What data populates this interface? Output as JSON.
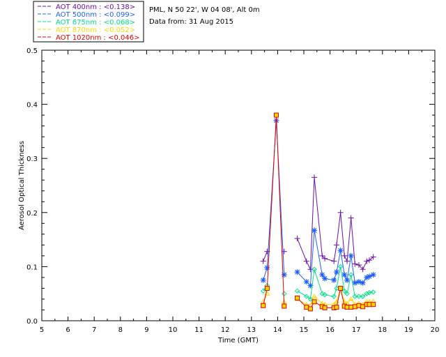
{
  "header": {
    "station": "PML, N 50 22', W 04 08', Alt 0m",
    "date": "Data from: 31 Aug 2015"
  },
  "chart_data": {
    "type": "line",
    "xlabel": "Time (GMT)",
    "ylabel": "Aerosol Optical Thickness",
    "xlim": [
      5,
      20
    ],
    "ylim": [
      0,
      0.5
    ],
    "xticks": [
      "5",
      "6",
      "7",
      "8",
      "9",
      "10",
      "11",
      "12",
      "13",
      "14",
      "15",
      "16",
      "17",
      "18",
      "19",
      "20"
    ],
    "yticks": [
      "0.0",
      "0.1",
      "0.2",
      "0.3",
      "0.4",
      "0.5"
    ],
    "legend_position": "top-left",
    "series": [
      {
        "name": "AOT  400nm : <0.138>",
        "color": "#6a0dad",
        "marker": "plus",
        "points": [
          [
            13.45,
            0.11
          ],
          [
            13.6,
            0.128
          ],
          [
            14.25,
            0.128
          ],
          [
            14.75,
            0.152
          ],
          [
            15.1,
            0.11
          ],
          [
            15.25,
            0.095
          ],
          [
            15.4,
            0.265
          ],
          [
            15.7,
            0.12
          ],
          [
            15.8,
            0.115
          ],
          [
            16.15,
            0.11
          ],
          [
            16.25,
            0.14
          ],
          [
            16.4,
            0.2
          ],
          [
            16.55,
            0.12
          ],
          [
            16.65,
            0.11
          ],
          [
            16.8,
            0.19
          ],
          [
            16.95,
            0.105
          ],
          [
            17.1,
            0.103
          ],
          [
            17.25,
            0.095
          ],
          [
            17.4,
            0.11
          ],
          [
            17.5,
            0.112
          ],
          [
            17.65,
            0.118
          ]
        ]
      },
      {
        "name": "AOT  500nm : <0.099>",
        "color": "#1f5fff",
        "marker": "asterisk",
        "points": [
          [
            13.45,
            0.075
          ],
          [
            13.6,
            0.098
          ],
          [
            13.95,
            0.37
          ],
          [
            14.25,
            0.085
          ],
          [
            14.75,
            0.09
          ],
          [
            15.1,
            0.072
          ],
          [
            15.25,
            0.065
          ],
          [
            15.4,
            0.167
          ],
          [
            15.7,
            0.085
          ],
          [
            15.8,
            0.078
          ],
          [
            16.15,
            0.075
          ],
          [
            16.25,
            0.09
          ],
          [
            16.4,
            0.13
          ],
          [
            16.55,
            0.085
          ],
          [
            16.65,
            0.075
          ],
          [
            16.8,
            0.12
          ],
          [
            16.95,
            0.07
          ],
          [
            17.1,
            0.072
          ],
          [
            17.25,
            0.07
          ],
          [
            17.4,
            0.08
          ],
          [
            17.5,
            0.082
          ],
          [
            17.65,
            0.085
          ]
        ]
      },
      {
        "name": "AOT  675nm : <0.068>",
        "color": "#00e08a",
        "marker": "diamond",
        "points": [
          [
            13.45,
            0.055
          ],
          [
            13.6,
            0.065
          ],
          [
            14.25,
            0.05
          ],
          [
            14.75,
            0.055
          ],
          [
            15.1,
            0.045
          ],
          [
            15.25,
            0.04
          ],
          [
            15.4,
            0.095
          ],
          [
            15.7,
            0.05
          ],
          [
            15.8,
            0.048
          ],
          [
            16.15,
            0.045
          ],
          [
            16.25,
            0.06
          ],
          [
            16.4,
            0.1
          ],
          [
            16.55,
            0.055
          ],
          [
            16.65,
            0.05
          ],
          [
            16.8,
            0.085
          ],
          [
            16.95,
            0.045
          ],
          [
            17.1,
            0.045
          ],
          [
            17.25,
            0.045
          ],
          [
            17.4,
            0.05
          ],
          [
            17.5,
            0.052
          ],
          [
            17.65,
            0.053
          ]
        ]
      },
      {
        "name": "AOT  870nm : <0.052>",
        "color": "#ffd700",
        "marker": "triangle",
        "points": [
          [
            13.45,
            0.035
          ],
          [
            13.6,
            0.05
          ],
          [
            14.25,
            0.035
          ],
          [
            14.75,
            0.04
          ],
          [
            15.1,
            0.03
          ],
          [
            15.25,
            0.028
          ],
          [
            15.4,
            0.045
          ],
          [
            15.7,
            0.032
          ],
          [
            15.8,
            0.03
          ],
          [
            16.15,
            0.03
          ],
          [
            16.25,
            0.035
          ],
          [
            16.4,
            0.06
          ],
          [
            16.55,
            0.035
          ],
          [
            16.65,
            0.032
          ],
          [
            16.8,
            0.04
          ],
          [
            16.95,
            0.03
          ],
          [
            17.1,
            0.032
          ],
          [
            17.25,
            0.03
          ],
          [
            17.4,
            0.035
          ],
          [
            17.5,
            0.035
          ],
          [
            17.65,
            0.036
          ]
        ]
      },
      {
        "name": "AOT 1020nm : <0.046>",
        "color": "#e00000",
        "marker": "square",
        "points": [
          [
            13.45,
            0.028
          ],
          [
            13.6,
            0.06
          ],
          [
            13.95,
            0.38
          ],
          [
            14.25,
            0.027
          ],
          [
            14.75,
            0.042
          ],
          [
            15.1,
            0.025
          ],
          [
            15.25,
            0.022
          ],
          [
            15.4,
            0.035
          ],
          [
            15.7,
            0.026
          ],
          [
            15.8,
            0.024
          ],
          [
            16.15,
            0.024
          ],
          [
            16.25,
            0.025
          ],
          [
            16.4,
            0.06
          ],
          [
            16.55,
            0.027
          ],
          [
            16.65,
            0.025
          ],
          [
            16.8,
            0.025
          ],
          [
            16.95,
            0.026
          ],
          [
            17.1,
            0.028
          ],
          [
            17.25,
            0.026
          ],
          [
            17.4,
            0.03
          ],
          [
            17.5,
            0.03
          ],
          [
            17.65,
            0.03
          ]
        ]
      }
    ]
  }
}
